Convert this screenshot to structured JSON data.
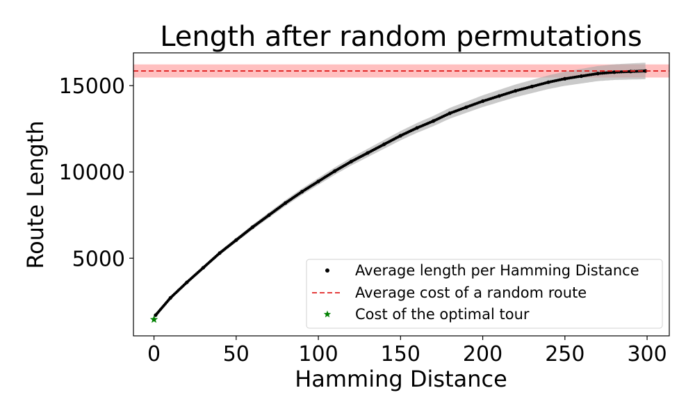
{
  "chart_data": {
    "type": "scatter",
    "title": "Length after random permutations",
    "xlabel": "Hamming Distance",
    "ylabel": "Route Length",
    "xlim": [
      -12.5,
      313.5
    ],
    "ylim": [
      500,
      16900
    ],
    "xticks": [
      0,
      50,
      100,
      150,
      200,
      250,
      300
    ],
    "yticks": [
      5000,
      10000,
      15000
    ],
    "grid": false,
    "legend_position": "lower-right",
    "series": [
      {
        "name": "Average length per Hamming Distance",
        "marker": "dot",
        "color": "#000000",
        "x": [
          1,
          10,
          20,
          30,
          40,
          50,
          60,
          70,
          80,
          90,
          100,
          110,
          120,
          130,
          140,
          150,
          160,
          170,
          180,
          190,
          200,
          210,
          220,
          230,
          240,
          250,
          260,
          270,
          280,
          290,
          299
        ],
        "y": [
          1700,
          2700,
          3600,
          4450,
          5300,
          6050,
          6800,
          7500,
          8200,
          8850,
          9450,
          10050,
          10600,
          11100,
          11600,
          12100,
          12550,
          12950,
          13400,
          13750,
          14100,
          14400,
          14700,
          14950,
          15200,
          15400,
          15550,
          15700,
          15780,
          15820,
          15850
        ]
      },
      {
        "name": "Average cost of a random route",
        "marker": "dashed-line",
        "color": "#e02020",
        "value": 15850
      },
      {
        "name": "Cost of the optimal tour",
        "marker": "star",
        "color": "#008000",
        "x": [
          0
        ],
        "y": [
          1450
        ]
      }
    ],
    "colors": {
      "points": "#000000",
      "band": "#a6a6a6",
      "random_line": "#e02020",
      "random_band": "#ff9e9e",
      "optimal": "#008000"
    }
  }
}
